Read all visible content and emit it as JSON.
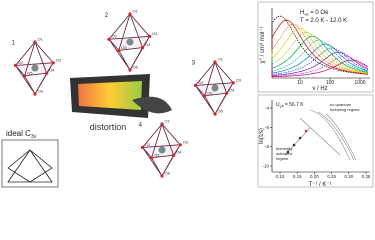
{
  "structures": [
    {
      "label": "1",
      "atoms": [
        "O1",
        "O2",
        "O3",
        "O4",
        "O5",
        "O6"
      ]
    },
    {
      "label": "2",
      "atoms": [
        "O1",
        "O2",
        "O3",
        "O4",
        "O5",
        "O6"
      ]
    },
    {
      "label": "3",
      "atoms": [
        "O1",
        "O2",
        "O3",
        "O4",
        "O5",
        "O6"
      ]
    },
    {
      "label": "4",
      "atoms": [
        "O1",
        "O2",
        "O3",
        "O4",
        "O5",
        "O6"
      ]
    }
  ],
  "arrow_label": "distortion",
  "ideal": {
    "label": "ideal C",
    "sub": "3v"
  },
  "ac_plot": {
    "field": "H",
    "field_sub": "dc",
    "field_text": " = 0 Oe",
    "temperature_text": "T = 2.0 K - 12.0 K",
    "x_label": "ν / Hz",
    "y_label": "χ'' / cm³ mol⁻¹",
    "xticks": [
      "10",
      "100",
      "1000"
    ]
  },
  "arrhenius": {
    "energy": "U",
    "energy_sub": "eff",
    "energy_text": " = 56.7 K",
    "regime1": [
      "thermally",
      "activated",
      "regime"
    ],
    "regime2": [
      "no quantum",
      "tunneling regime"
    ],
    "x_label": "T⁻¹ / K⁻¹",
    "y_label": "ln(τ/s)",
    "xticks": [
      "0.10",
      "0.15",
      "0.20",
      "0.25",
      "0.30",
      "0.35"
    ],
    "yticks": [
      "-4",
      "-6",
      "-8",
      "-10"
    ]
  }
}
